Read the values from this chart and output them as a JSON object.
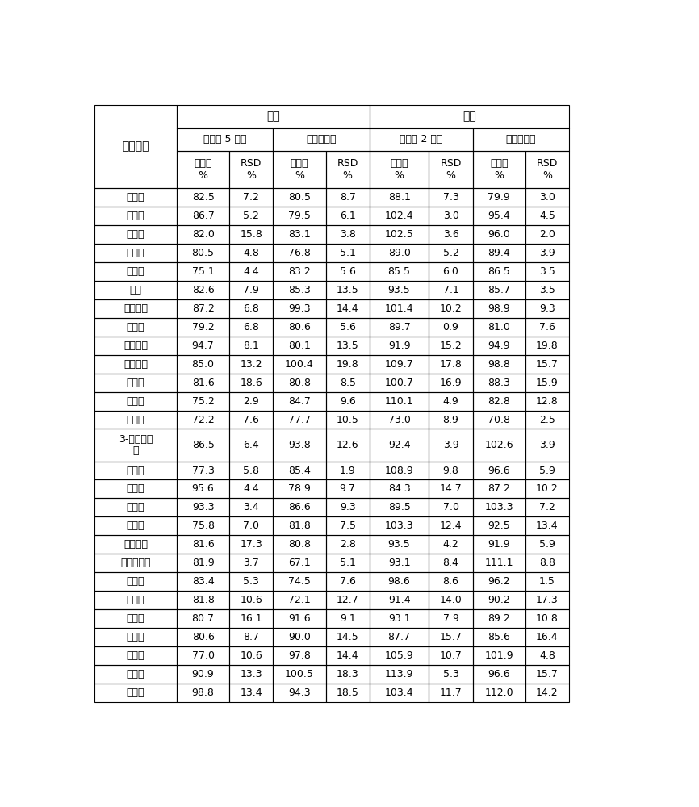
{
  "rows": [
    [
      "咜虫脲",
      "82.5",
      "7.2",
      "80.5",
      "8.7",
      "88.1",
      "7.3",
      "79.9",
      "3.0"
    ],
    [
      "嗇菌酯",
      "86.7",
      "5.2",
      "79.5",
      "6.1",
      "102.4",
      "3.0",
      "95.4",
      "4.5"
    ],
    [
      "甲萍威",
      "82.0",
      "15.8",
      "83.1",
      "3.8",
      "102.5",
      "3.6",
      "96.0",
      "2.0"
    ],
    [
      "多菌灵",
      "80.5",
      "4.8",
      "76.8",
      "5.1",
      "89.0",
      "5.2",
      "89.4",
      "3.9"
    ],
    [
      "克百威",
      "75.1",
      "4.4",
      "83.2",
      "5.6",
      "85.5",
      "6.0",
      "86.5",
      "3.5"
    ],
    [
      "乐果",
      "82.6",
      "7.9",
      "85.3",
      "13.5",
      "93.5",
      "7.1",
      "85.7",
      "3.5"
    ],
    [
      "烯酰吓啊",
      "87.2",
      "6.8",
      "99.3",
      "14.4",
      "101.4",
      "10.2",
      "98.9",
      "9.3"
    ],
    [
      "吧虫啊",
      "79.2",
      "6.8",
      "80.6",
      "5.6",
      "89.7",
      "0.9",
      "81.0",
      "7.6"
    ],
    [
      "马拉硫灸",
      "94.7",
      "8.1",
      "80.1",
      "13.5",
      "91.9",
      "15.2",
      "94.9",
      "19.8"
    ],
    [
      "伏杀硫灸",
      "85.0",
      "13.2",
      "100.4",
      "19.8",
      "109.7",
      "17.8",
      "98.8",
      "15.7"
    ],
    [
      "咊鲜胺",
      "81.6",
      "18.6",
      "80.8",
      "8.5",
      "100.7",
      "16.9",
      "88.3",
      "15.9"
    ],
    [
      "嗇霍胺",
      "75.2",
      "2.9",
      "84.7",
      "9.6",
      "110.1",
      "4.9",
      "82.8",
      "12.8"
    ],
    [
      "噎虫崪",
      "72.2",
      "7.6",
      "77.7",
      "10.5",
      "73.0",
      "8.9",
      "70.8",
      "2.5"
    ],
    [
      "3-羟基克百威",
      "86.5",
      "6.4",
      "93.8",
      "12.6",
      "92.4",
      "3.9",
      "102.6",
      "3.9"
    ],
    [
      "灭幼脲",
      "77.3",
      "5.8",
      "85.4",
      "1.9",
      "108.9",
      "9.8",
      "96.6",
      "5.9"
    ],
    [
      "除虫脲",
      "95.6",
      "4.4",
      "78.9",
      "9.7",
      "84.3",
      "14.7",
      "87.2",
      "10.2"
    ],
    [
      "三唑酮",
      "93.3",
      "3.4",
      "86.6",
      "9.3",
      "89.5",
      "7.0",
      "103.3",
      "7.2"
    ],
    [
      "甲拌灸",
      "75.8",
      "7.0",
      "81.8",
      "7.5",
      "103.3",
      "12.4",
      "92.5",
      "13.4"
    ],
    [
      "水胺硫灸",
      "81.6",
      "17.3",
      "80.8",
      "2.8",
      "93.5",
      "4.2",
      "91.9",
      "5.9"
    ],
    [
      "苯醛甲环唑",
      "81.9",
      "3.7",
      "67.1",
      "5.1",
      "93.1",
      "8.4",
      "111.1",
      "8.8"
    ],
    [
      "多效唑",
      "83.4",
      "5.3",
      "74.5",
      "7.6",
      "98.6",
      "8.6",
      "96.2",
      "1.5"
    ],
    [
      "氯吧脲",
      "81.8",
      "10.6",
      "72.1",
      "12.7",
      "91.4",
      "14.0",
      "90.2",
      "17.3"
    ],
    [
      "戊唑醇",
      "80.7",
      "16.1",
      "91.6",
      "9.1",
      "93.1",
      "7.9",
      "89.2",
      "10.8"
    ],
    [
      "抗蚊威",
      "80.6",
      "8.7",
      "90.0",
      "14.5",
      "87.7",
      "15.7",
      "85.6",
      "16.4"
    ],
    [
      "异丙威",
      "77.0",
      "10.6",
      "97.8",
      "14.4",
      "105.9",
      "10.7",
      "101.9",
      "4.8"
    ],
    [
      "倍硫灸",
      "90.9",
      "13.3",
      "100.5",
      "18.3",
      "113.9",
      "5.3",
      "96.6",
      "15.7"
    ],
    [
      "腌菌唑",
      "98.8",
      "13.4",
      "94.3",
      "18.5",
      "103.4",
      "11.7",
      "112.0",
      "14.2"
    ]
  ],
  "special_row_idx": 13,
  "col_name_label": "农药名称",
  "top_headers": [
    "辣椒",
    "番茄"
  ],
  "mid_headers": [
    "实施例 5 方法",
    "对比例方法",
    "实施例 2 方法",
    "对比例方法"
  ],
  "sub_headers": [
    "回收率\n%",
    "RSD\n%",
    "回收率\n%",
    "RSD\n%",
    "回收率\n%",
    "RSD\n%",
    "回收率\n%",
    "RSD\n%"
  ],
  "special_label_line1": "3-羟基克百",
  "special_label_line2": "威",
  "bg_color": "#ffffff",
  "line_color": "#000000",
  "text_color": "#000000"
}
